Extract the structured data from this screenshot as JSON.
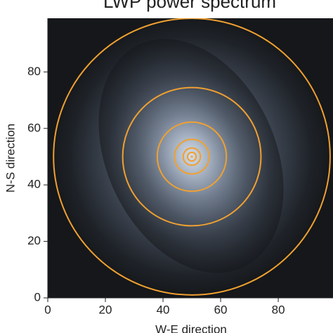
{
  "chart_data": {
    "type": "spectrum",
    "title": "LWP power spectrum",
    "xlabel": "W-E direction",
    "ylabel": "N-S direction",
    "xlim": [
      0,
      99
    ],
    "ylim": [
      0,
      99
    ],
    "xticks": [
      0,
      20,
      40,
      60,
      80
    ],
    "yticks": [
      0,
      20,
      40,
      60,
      80
    ],
    "center": [
      50,
      50
    ],
    "radii": [
      48,
      24,
      12,
      6,
      3,
      1.5
    ],
    "ring_color": "#f0a030"
  }
}
